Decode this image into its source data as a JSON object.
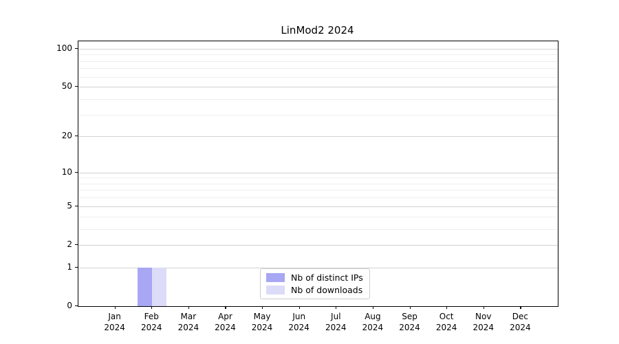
{
  "title": "LinMod2 2024",
  "chart_data": {
    "type": "bar",
    "title": "LinMod2 2024",
    "x_months": [
      "Jan",
      "Feb",
      "Mar",
      "Apr",
      "May",
      "Jun",
      "Jul",
      "Aug",
      "Sep",
      "Oct",
      "Nov",
      "Dec"
    ],
    "x_year": "2024",
    "series": [
      {
        "name": "Nb of distinct IPs",
        "color": "#a7a7f3",
        "values": [
          0,
          1,
          0,
          0,
          0,
          0,
          0,
          0,
          0,
          0,
          0,
          0
        ]
      },
      {
        "name": "Nb of downloads",
        "color": "#dcdcf8",
        "values": [
          0,
          1,
          0,
          0,
          0,
          0,
          0,
          0,
          0,
          0,
          0,
          0
        ]
      }
    ],
    "y_scale": "log10(1+y)",
    "ylim": [
      0,
      114.5
    ],
    "y_ticks": [
      0,
      1,
      2,
      5,
      10,
      20,
      50,
      100
    ],
    "y_minor_gridlines": [
      3,
      4,
      6,
      7,
      8,
      9,
      30,
      40,
      60,
      70,
      80,
      90
    ],
    "grid": true,
    "legend_position": "lower center"
  },
  "colors": {
    "major_grid": "#d2d2d2",
    "minor_grid": "#efefef",
    "spine": "#000000",
    "legend_border": "#cccccc"
  }
}
